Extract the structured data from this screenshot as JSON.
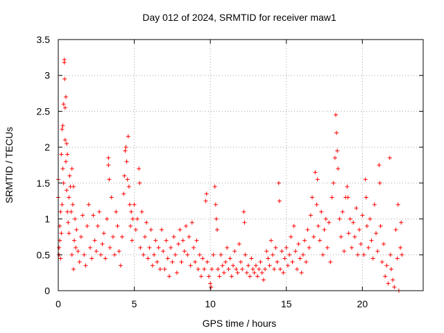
{
  "chart_data": {
    "type": "scatter",
    "title": "Day 012 of 2024, SRMTID for receiver maw1",
    "xlabel": "GPS time / hours",
    "ylabel": "SRMTID / TECUs",
    "xlim": [
      0,
      24
    ],
    "ylim": [
      0,
      3.5
    ],
    "xticks": [
      0,
      5,
      10,
      15,
      20
    ],
    "xtick_labels": [
      "0",
      "5",
      "10",
      "15",
      "20"
    ],
    "yticks": [
      0,
      0.5,
      1,
      1.5,
      2,
      2.5,
      3,
      3.5
    ],
    "ytick_labels": [
      "0",
      "0.5",
      "1",
      "1.5",
      "2",
      "2.5",
      "3",
      "3.5"
    ],
    "grid": true,
    "marker": "+",
    "color": "#ff0000",
    "series": [
      {
        "name": "maw1",
        "points": [
          [
            0.0,
            1.55
          ],
          [
            0.0,
            1.3
          ],
          [
            0.05,
            0.6
          ],
          [
            0.05,
            0.5
          ],
          [
            0.1,
            0.9
          ],
          [
            0.1,
            0.7
          ],
          [
            0.15,
            1.1
          ],
          [
            0.15,
            0.45
          ],
          [
            0.2,
            1.9
          ],
          [
            0.2,
            0.8
          ],
          [
            0.25,
            2.25
          ],
          [
            0.25,
            1.2
          ],
          [
            0.3,
            1.7
          ],
          [
            0.3,
            2.3
          ],
          [
            0.35,
            2.6
          ],
          [
            0.35,
            1.5
          ],
          [
            0.4,
            3.22
          ],
          [
            0.4,
            3.18
          ],
          [
            0.42,
            2.95
          ],
          [
            0.45,
            2.55
          ],
          [
            0.45,
            2.1
          ],
          [
            0.5,
            2.7
          ],
          [
            0.5,
            1.8
          ],
          [
            0.55,
            2.05
          ],
          [
            0.55,
            1.4
          ],
          [
            0.6,
            1.9
          ],
          [
            0.6,
            1.1
          ],
          [
            0.65,
            0.95
          ],
          [
            0.7,
            1.3
          ],
          [
            0.7,
            0.8
          ],
          [
            0.75,
            1.6
          ],
          [
            0.8,
            1.45
          ],
          [
            0.85,
            1.1
          ],
          [
            0.9,
            1.7
          ],
          [
            0.9,
            0.5
          ],
          [
            0.95,
            1.2
          ],
          [
            1.0,
            1.45
          ],
          [
            1.0,
            0.3
          ],
          [
            1.05,
            0.7
          ],
          [
            1.1,
            1.0
          ],
          [
            1.15,
            0.6
          ],
          [
            1.2,
            0.85
          ],
          [
            1.3,
            0.55
          ],
          [
            1.4,
            0.4
          ],
          [
            1.5,
            0.75
          ],
          [
            1.6,
            1.05
          ],
          [
            1.7,
            0.5
          ],
          [
            1.8,
            0.35
          ],
          [
            1.9,
            0.9
          ],
          [
            2.0,
            1.2
          ],
          [
            2.1,
            0.6
          ],
          [
            2.2,
            0.45
          ],
          [
            2.3,
            1.05
          ],
          [
            2.4,
            0.7
          ],
          [
            2.5,
            0.55
          ],
          [
            2.6,
            0.9
          ],
          [
            2.7,
            1.1
          ],
          [
            2.8,
            0.5
          ],
          [
            2.9,
            0.65
          ],
          [
            3.0,
            0.8
          ],
          [
            3.1,
            0.45
          ],
          [
            3.2,
            1.0
          ],
          [
            3.3,
            1.85
          ],
          [
            3.3,
            1.75
          ],
          [
            3.35,
            1.55
          ],
          [
            3.4,
            0.6
          ],
          [
            3.5,
            1.3
          ],
          [
            3.6,
            0.75
          ],
          [
            3.7,
            0.5
          ],
          [
            3.8,
            1.1
          ],
          [
            3.9,
            0.9
          ],
          [
            4.0,
            0.55
          ],
          [
            4.1,
            0.35
          ],
          [
            4.2,
            0.75
          ],
          [
            4.3,
            1.35
          ],
          [
            4.35,
            1.6
          ],
          [
            4.4,
            1.95
          ],
          [
            4.45,
            2.0
          ],
          [
            4.5,
            1.8
          ],
          [
            4.55,
            1.55
          ],
          [
            4.6,
            2.15
          ],
          [
            4.65,
            1.45
          ],
          [
            4.7,
            1.2
          ],
          [
            4.75,
            0.9
          ],
          [
            4.8,
            1.1
          ],
          [
            4.85,
            0.7
          ],
          [
            4.9,
            1.0
          ],
          [
            5.0,
            1.2
          ],
          [
            5.1,
            0.85
          ],
          [
            5.2,
            1.0
          ],
          [
            5.3,
            1.7
          ],
          [
            5.35,
            1.5
          ],
          [
            5.4,
            0.6
          ],
          [
            5.5,
            1.1
          ],
          [
            5.6,
            0.5
          ],
          [
            5.7,
            0.75
          ],
          [
            5.8,
            0.95
          ],
          [
            5.9,
            0.45
          ],
          [
            6.0,
            0.6
          ],
          [
            6.1,
            0.85
          ],
          [
            6.2,
            0.35
          ],
          [
            6.3,
            0.5
          ],
          [
            6.4,
            0.7
          ],
          [
            6.5,
            0.4
          ],
          [
            6.6,
            0.6
          ],
          [
            6.7,
            0.3
          ],
          [
            6.8,
            0.85
          ],
          [
            6.9,
            0.55
          ],
          [
            7.0,
            0.3
          ],
          [
            7.1,
            0.7
          ],
          [
            7.2,
            0.45
          ],
          [
            7.3,
            0.2
          ],
          [
            7.4,
            0.6
          ],
          [
            7.5,
            0.4
          ],
          [
            7.6,
            0.75
          ],
          [
            7.7,
            0.5
          ],
          [
            7.8,
            0.25
          ],
          [
            7.9,
            0.65
          ],
          [
            8.0,
            0.85
          ],
          [
            8.1,
            0.4
          ],
          [
            8.2,
            0.7
          ],
          [
            8.3,
            0.55
          ],
          [
            8.4,
            0.9
          ],
          [
            8.5,
            0.5
          ],
          [
            8.6,
            0.75
          ],
          [
            8.7,
            0.35
          ],
          [
            8.8,
            0.95
          ],
          [
            8.9,
            0.6
          ],
          [
            9.0,
            0.4
          ],
          [
            9.1,
            0.7
          ],
          [
            9.2,
            0.3
          ],
          [
            9.3,
            0.5
          ],
          [
            9.4,
            0.2
          ],
          [
            9.5,
            0.45
          ],
          [
            9.6,
            0.3
          ],
          [
            9.7,
            1.25
          ],
          [
            9.75,
            1.35
          ],
          [
            9.8,
            0.4
          ],
          [
            9.9,
            0.2
          ],
          [
            10.0,
            0.1
          ],
          [
            10.05,
            0.05
          ],
          [
            10.1,
            0.3
          ],
          [
            10.2,
            0.5
          ],
          [
            10.3,
            1.45
          ],
          [
            10.35,
            1.2
          ],
          [
            10.4,
            1.0
          ],
          [
            10.45,
            0.85
          ],
          [
            10.5,
            0.3
          ],
          [
            10.6,
            0.2
          ],
          [
            10.7,
            0.5
          ],
          [
            10.8,
            0.35
          ],
          [
            10.9,
            0.25
          ],
          [
            11.0,
            0.4
          ],
          [
            11.1,
            0.6
          ],
          [
            11.2,
            0.3
          ],
          [
            11.3,
            0.45
          ],
          [
            11.4,
            0.2
          ],
          [
            11.5,
            0.35
          ],
          [
            11.6,
            0.55
          ],
          [
            11.7,
            0.3
          ],
          [
            11.8,
            0.25
          ],
          [
            11.9,
            0.65
          ],
          [
            12.0,
            0.4
          ],
          [
            12.1,
            0.3
          ],
          [
            12.2,
            1.1
          ],
          [
            12.25,
            0.95
          ],
          [
            12.3,
            0.5
          ],
          [
            12.4,
            0.25
          ],
          [
            12.5,
            0.35
          ],
          [
            12.6,
            0.2
          ],
          [
            12.7,
            0.45
          ],
          [
            12.8,
            0.3
          ],
          [
            12.9,
            0.25
          ],
          [
            13.0,
            0.35
          ],
          [
            13.1,
            0.2
          ],
          [
            13.2,
            0.3
          ],
          [
            13.3,
            0.4
          ],
          [
            13.4,
            0.25
          ],
          [
            13.5,
            0.15
          ],
          [
            13.6,
            0.3
          ],
          [
            13.7,
            0.55
          ],
          [
            13.8,
            0.45
          ],
          [
            13.9,
            0.35
          ],
          [
            14.0,
            0.7
          ],
          [
            14.1,
            0.5
          ],
          [
            14.2,
            0.3
          ],
          [
            14.3,
            0.6
          ],
          [
            14.4,
            0.4
          ],
          [
            14.5,
            1.5
          ],
          [
            14.55,
            1.25
          ],
          [
            14.6,
            0.3
          ],
          [
            14.7,
            0.55
          ],
          [
            14.8,
            0.25
          ],
          [
            14.9,
            0.45
          ],
          [
            15.0,
            0.6
          ],
          [
            15.1,
            0.35
          ],
          [
            15.2,
            0.5
          ],
          [
            15.3,
            0.75
          ],
          [
            15.4,
            0.4
          ],
          [
            15.5,
            0.9
          ],
          [
            15.6,
            0.55
          ],
          [
            15.7,
            0.3
          ],
          [
            15.8,
            0.65
          ],
          [
            15.9,
            0.45
          ],
          [
            16.0,
            0.25
          ],
          [
            16.1,
            0.5
          ],
          [
            16.2,
            0.7
          ],
          [
            16.3,
            0.4
          ],
          [
            16.4,
            0.85
          ],
          [
            16.5,
            0.6
          ],
          [
            16.6,
            1.05
          ],
          [
            16.7,
            1.3
          ],
          [
            16.8,
            0.75
          ],
          [
            16.9,
            1.65
          ],
          [
            17.0,
            1.2
          ],
          [
            17.05,
            1.55
          ],
          [
            17.1,
            0.9
          ],
          [
            17.2,
            0.7
          ],
          [
            17.3,
            1.1
          ],
          [
            17.4,
            0.5
          ],
          [
            17.5,
            0.85
          ],
          [
            17.6,
            1.0
          ],
          [
            17.7,
            0.6
          ],
          [
            17.8,
            0.95
          ],
          [
            17.9,
            0.4
          ],
          [
            18.0,
            1.3
          ],
          [
            18.1,
            1.5
          ],
          [
            18.2,
            1.85
          ],
          [
            18.25,
            2.45
          ],
          [
            18.3,
            2.2
          ],
          [
            18.35,
            1.95
          ],
          [
            18.4,
            1.7
          ],
          [
            18.5,
            1.0
          ],
          [
            18.6,
            0.75
          ],
          [
            18.7,
            1.1
          ],
          [
            18.8,
            0.55
          ],
          [
            18.9,
            1.3
          ],
          [
            19.0,
            1.45
          ],
          [
            19.05,
            1.3
          ],
          [
            19.1,
            0.8
          ],
          [
            19.2,
            1.0
          ],
          [
            19.3,
            0.6
          ],
          [
            19.4,
            0.95
          ],
          [
            19.5,
            0.75
          ],
          [
            19.6,
            1.15
          ],
          [
            19.7,
            0.5
          ],
          [
            19.8,
            0.85
          ],
          [
            19.9,
            0.65
          ],
          [
            20.0,
            1.05
          ],
          [
            20.1,
            0.5
          ],
          [
            20.2,
            1.55
          ],
          [
            20.25,
            1.3
          ],
          [
            20.3,
            0.9
          ],
          [
            20.4,
            0.6
          ],
          [
            20.5,
            1.0
          ],
          [
            20.6,
            0.7
          ],
          [
            20.7,
            0.45
          ],
          [
            20.8,
            1.2
          ],
          [
            20.9,
            0.8
          ],
          [
            21.0,
            0.55
          ],
          [
            21.1,
            1.75
          ],
          [
            21.15,
            1.5
          ],
          [
            21.2,
            0.9
          ],
          [
            21.3,
            0.4
          ],
          [
            21.4,
            0.65
          ],
          [
            21.5,
            0.2
          ],
          [
            21.6,
            0.35
          ],
          [
            21.7,
            0.1
          ],
          [
            21.8,
            1.85
          ],
          [
            21.85,
            0.5
          ],
          [
            21.9,
            0.3
          ],
          [
            22.0,
            0.15
          ],
          [
            22.1,
            0.05
          ],
          [
            22.2,
            0.85
          ],
          [
            22.3,
            0.45
          ],
          [
            22.35,
            1.2
          ],
          [
            22.4,
            0.0
          ],
          [
            22.5,
            0.6
          ],
          [
            22.55,
            0.95
          ],
          [
            22.6,
            0.5
          ]
        ]
      }
    ]
  }
}
